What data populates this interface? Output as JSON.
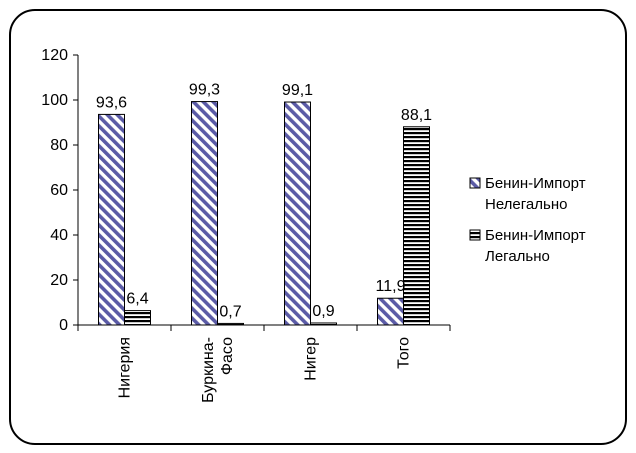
{
  "chart_data": {
    "type": "bar",
    "categories": [
      "Нигерия",
      "Буркина-Фасо",
      "Нигер",
      "Того"
    ],
    "series": [
      {
        "name": "Бенин-Импорт Нелегально",
        "values": [
          93.6,
          99.3,
          99.1,
          11.9
        ],
        "labels": [
          "93,6",
          "99,3",
          "99,1",
          "11,9"
        ],
        "pattern": "diagonal",
        "color": "#5b5ba6"
      },
      {
        "name": "Бенин-Импорт Легально",
        "values": [
          6.4,
          0.7,
          0.9,
          88.1
        ],
        "labels": [
          "6,4",
          "0,7",
          "0,9",
          "88,1"
        ],
        "pattern": "horizontal",
        "color": "#000000"
      }
    ],
    "category_labels": [
      [
        "Нигерия"
      ],
      [
        "Буркина-",
        "Фасо"
      ],
      [
        "Нигер"
      ],
      [
        "Того"
      ]
    ],
    "legend_labels": [
      [
        "Бенин-Импорт",
        "Нелегально"
      ],
      [
        "Бенин-Импорт",
        "Легально"
      ]
    ],
    "ylim": [
      0,
      120
    ],
    "yticks": [
      0,
      20,
      40,
      60,
      80,
      100,
      120
    ],
    "grid": false,
    "legend_position": "right",
    "title": "",
    "xlabel": "",
    "ylabel": ""
  }
}
